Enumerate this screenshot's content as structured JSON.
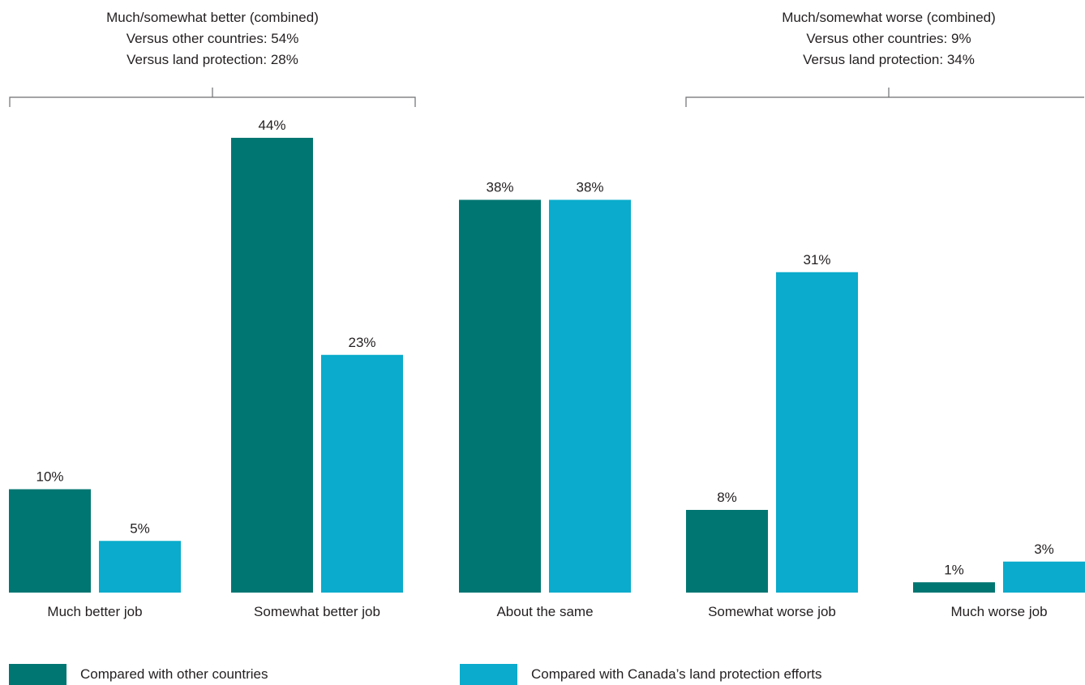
{
  "chart_data": {
    "type": "bar",
    "title": "",
    "xlabel": "",
    "ylabel": "",
    "ylim": [
      0,
      50
    ],
    "categories": [
      "Much better job",
      "Somewhat better job",
      "About the same",
      "Somewhat worse job",
      "Much worse job"
    ],
    "series": [
      {
        "name": "Compared with other countries",
        "color": "#007672",
        "values": [
          10,
          44,
          38,
          8,
          1
        ],
        "labels": [
          "10%",
          "44%",
          "38%",
          "8%",
          "1%"
        ]
      },
      {
        "name": "Compared with Canada’s land protection efforts",
        "color": "#0aabcc",
        "values": [
          5,
          23,
          38,
          31,
          3
        ],
        "labels": [
          "5%",
          "23%",
          "38%",
          "31%",
          "3%"
        ]
      }
    ],
    "legend_position": "bottom",
    "grid": false,
    "annotations": [
      {
        "lines": [
          "Much/somewhat better (combined)",
          "Versus other countries: 54%",
          "Versus land protection: 28%"
        ],
        "spans_categories": [
          0,
          1
        ]
      },
      {
        "lines": [
          "Much/somewhat worse (combined)",
          "Versus other countries: 9%",
          "Versus land protection: 34%"
        ],
        "spans_categories": [
          3,
          4
        ]
      }
    ]
  }
}
